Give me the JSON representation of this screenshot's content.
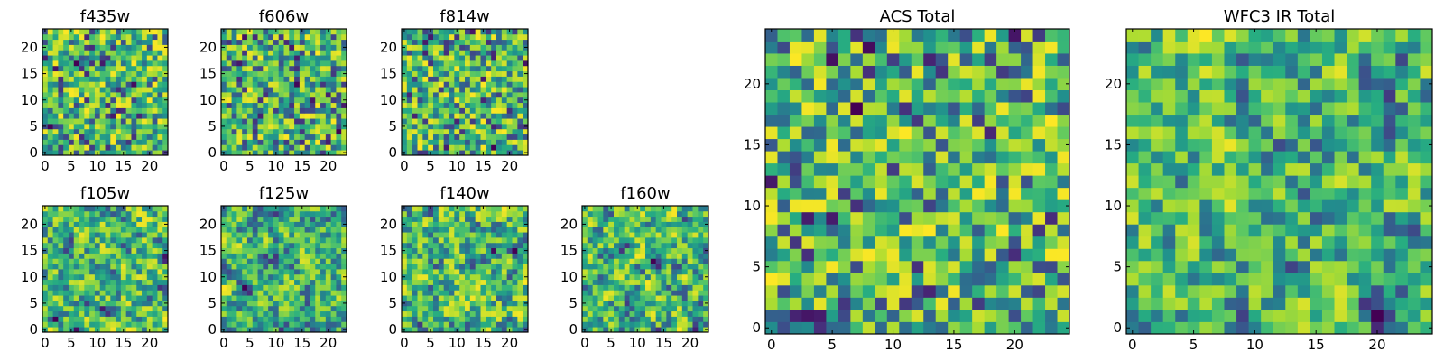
{
  "figure": {
    "colormap": "viridis",
    "vmin": 0,
    "vmax": 1
  },
  "chart_data": [
    {
      "type": "heatmap",
      "title": "f435w",
      "grid": [
        24,
        24
      ],
      "xticks": [
        "0",
        "5",
        "10",
        "15",
        "20"
      ],
      "yticks": [
        "0",
        "5",
        "10",
        "15",
        "20"
      ],
      "seed": 11,
      "smooth": 0
    },
    {
      "type": "heatmap",
      "title": "f606w",
      "grid": [
        24,
        24
      ],
      "xticks": [
        "0",
        "5",
        "10",
        "15",
        "20"
      ],
      "yticks": [
        "0",
        "5",
        "10",
        "15",
        "20"
      ],
      "seed": 23,
      "smooth": 0
    },
    {
      "type": "heatmap",
      "title": "f814w",
      "grid": [
        24,
        24
      ],
      "xticks": [
        "0",
        "5",
        "10",
        "15",
        "20"
      ],
      "yticks": [
        "0",
        "5",
        "10",
        "15",
        "20"
      ],
      "seed": 37,
      "smooth": 0
    },
    {
      "type": "heatmap",
      "title": "f105w",
      "grid": [
        24,
        24
      ],
      "xticks": [
        "0",
        "5",
        "10",
        "15",
        "20"
      ],
      "yticks": [
        "0",
        "5",
        "10",
        "15",
        "20"
      ],
      "seed": 41,
      "smooth": 1
    },
    {
      "type": "heatmap",
      "title": "f125w",
      "grid": [
        24,
        24
      ],
      "xticks": [
        "0",
        "5",
        "10",
        "15",
        "20"
      ],
      "yticks": [
        "0",
        "5",
        "10",
        "15",
        "20"
      ],
      "seed": 53,
      "smooth": 1
    },
    {
      "type": "heatmap",
      "title": "f140w",
      "grid": [
        24,
        24
      ],
      "xticks": [
        "0",
        "5",
        "10",
        "15",
        "20"
      ],
      "yticks": [
        "0",
        "5",
        "10",
        "15",
        "20"
      ],
      "seed": 67,
      "smooth": 1
    },
    {
      "type": "heatmap",
      "title": "f160w",
      "grid": [
        24,
        24
      ],
      "xticks": [
        "0",
        "5",
        "10",
        "15",
        "20"
      ],
      "yticks": [
        "0",
        "5",
        "10",
        "15",
        "20"
      ],
      "seed": 79,
      "smooth": 1
    },
    {
      "type": "heatmap",
      "title": "ACS Total",
      "grid": [
        25,
        25
      ],
      "xticks": [
        "0",
        "5",
        "10",
        "15",
        "20"
      ],
      "yticks": [
        "0",
        "5",
        "10",
        "15",
        "20"
      ],
      "seed": 97,
      "smooth": 0
    },
    {
      "type": "heatmap",
      "title": "WFC3 IR Total",
      "grid": [
        25,
        25
      ],
      "xticks": [
        "0",
        "5",
        "10",
        "15",
        "20"
      ],
      "yticks": [
        "0",
        "5",
        "10",
        "15",
        "20"
      ],
      "seed": 131,
      "smooth": 1
    }
  ]
}
